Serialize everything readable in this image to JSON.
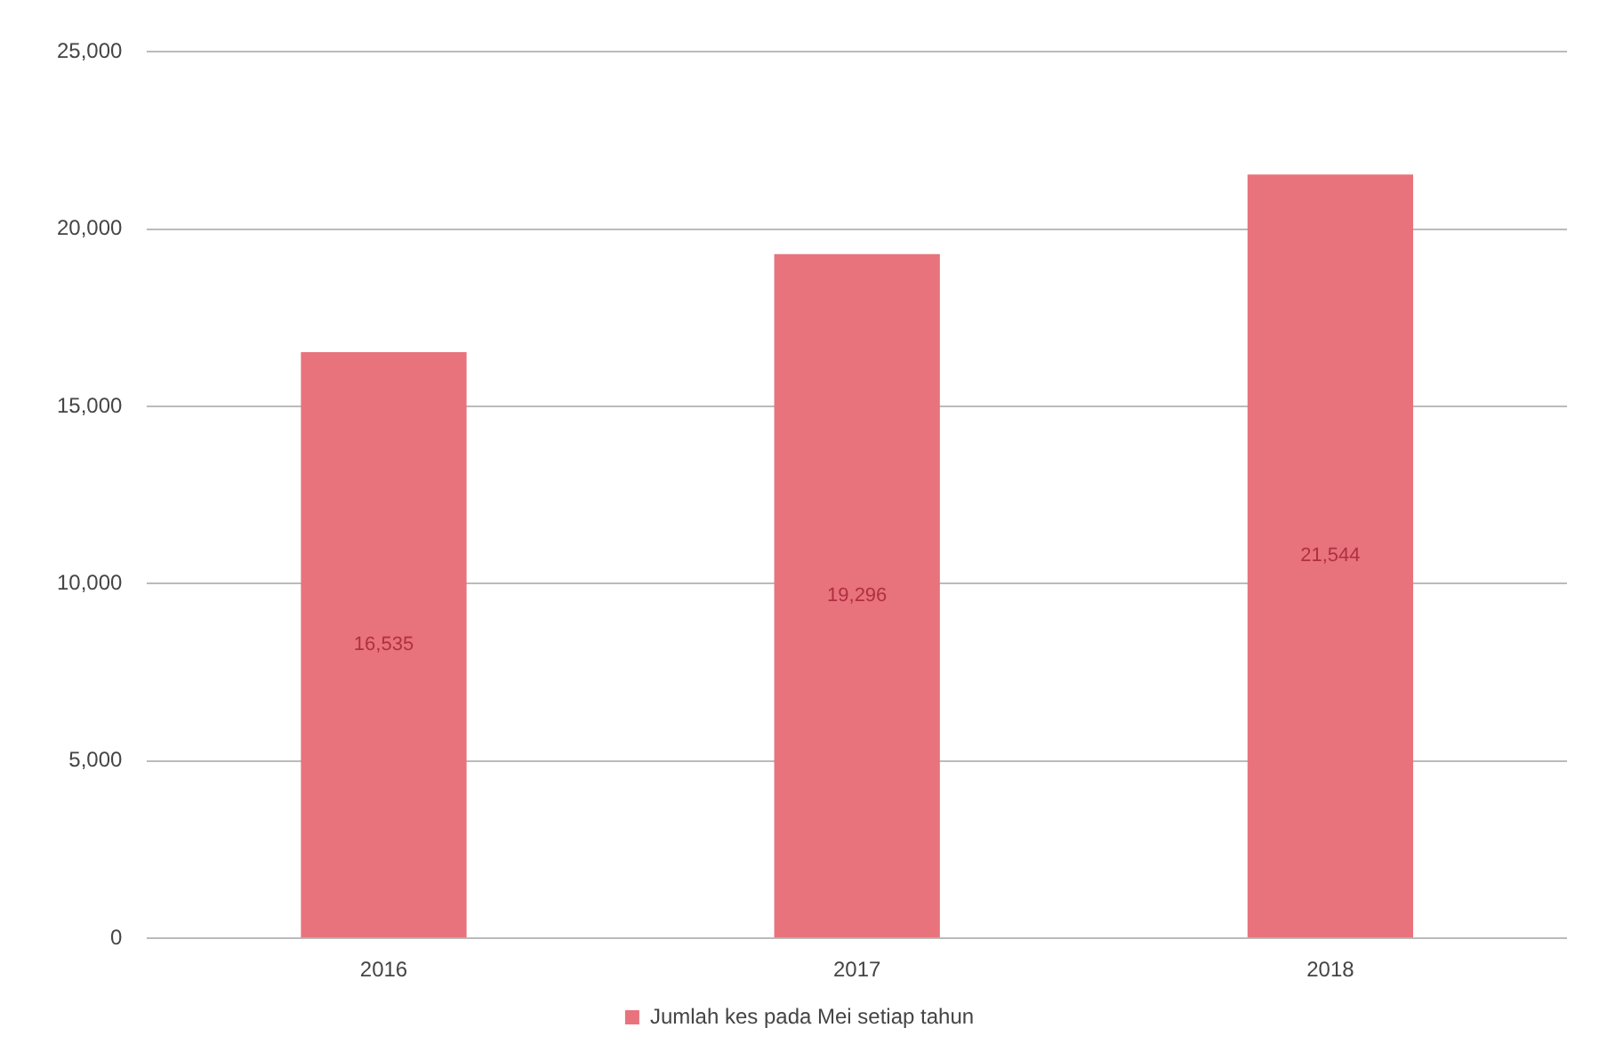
{
  "chart_data": {
    "type": "bar",
    "categories": [
      "2016",
      "2017",
      "2018"
    ],
    "series": [
      {
        "name": "Jumlah kes pada Mei setiap tahun",
        "color": "#e8737d",
        "values": [
          16535,
          19296,
          21544
        ],
        "value_labels": [
          "16,535",
          "19,296",
          "21,544"
        ]
      }
    ],
    "ylim": [
      0,
      25000
    ],
    "yticks": [
      {
        "value": 0,
        "label": "0"
      },
      {
        "value": 5000,
        "label": "5,000"
      },
      {
        "value": 10000,
        "label": "10,000"
      },
      {
        "value": 15000,
        "label": "15,000"
      },
      {
        "value": 20000,
        "label": "20,000"
      },
      {
        "value": 25000,
        "label": "25,000"
      }
    ],
    "grid": "y",
    "legend": "bottom"
  }
}
